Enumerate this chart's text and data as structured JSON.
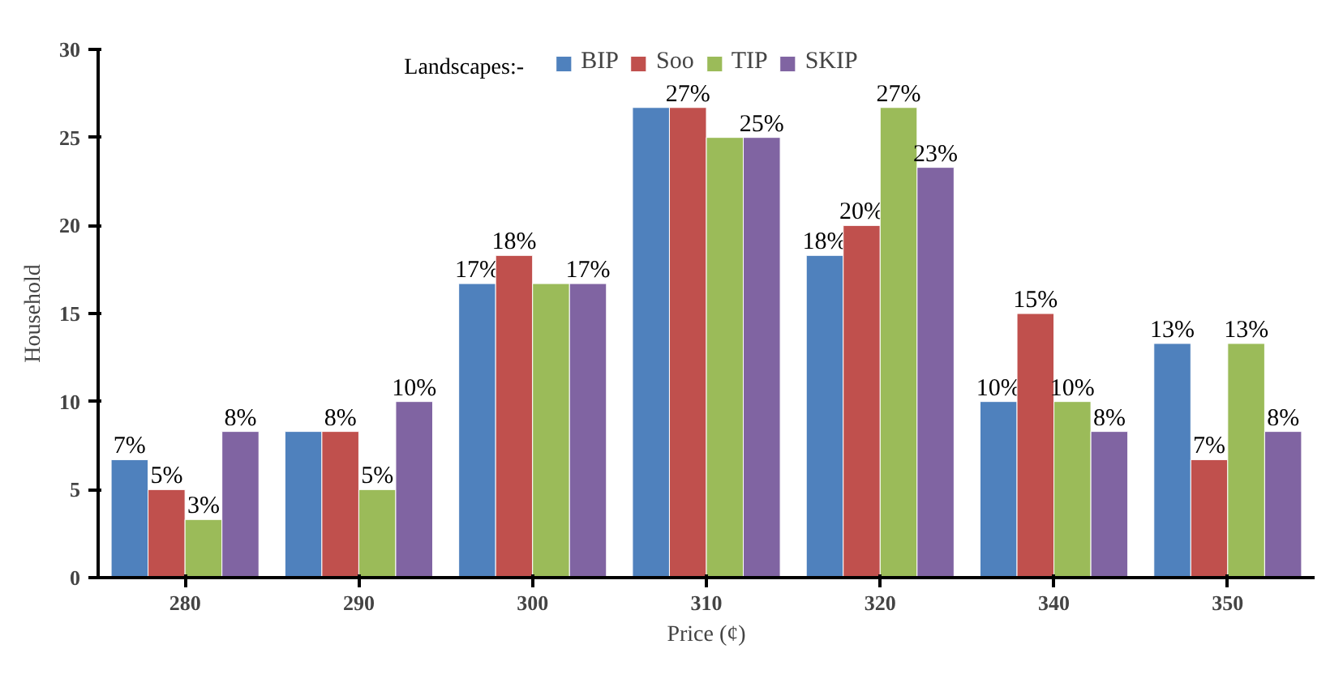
{
  "chart_data": {
    "type": "bar",
    "xlabel": "Price (¢)",
    "ylabel": "Household",
    "legend_title": "Landscapes:-",
    "categories": [
      "280",
      "290",
      "300",
      "310",
      "320",
      "340",
      "350"
    ],
    "series": [
      {
        "name": "BIP",
        "color": "#4f81bd",
        "values": [
          6.7,
          8.3,
          16.7,
          26.7,
          18.3,
          10,
          13.3
        ],
        "value_labels": [
          "7%",
          null,
          "17%",
          null,
          "18%",
          "10%",
          "13%"
        ]
      },
      {
        "name": "Soo",
        "color": "#c0504d",
        "values": [
          5,
          8.3,
          18.3,
          26.7,
          20,
          15,
          6.7
        ],
        "value_labels": [
          "5%",
          "8%",
          "18%",
          "27%",
          "20%",
          "15%",
          "7%"
        ]
      },
      {
        "name": "TIP",
        "color": "#9bbb59",
        "values": [
          3.3,
          5,
          16.7,
          25,
          26.7,
          10,
          13.3
        ],
        "value_labels": [
          "3%",
          "5%",
          null,
          null,
          "27%",
          "10%",
          "13%"
        ]
      },
      {
        "name": "SKIP",
        "color": "#8064a2",
        "values": [
          8.3,
          10,
          16.7,
          25,
          23.3,
          8.3,
          8.3
        ],
        "value_labels": [
          "8%",
          "10%",
          "17%",
          "25%",
          "23%",
          "8%",
          "8%"
        ]
      }
    ],
    "ylim": [
      0,
      30
    ],
    "yticks": [
      0,
      5,
      10,
      15,
      20,
      25,
      30
    ],
    "legend": "top"
  }
}
